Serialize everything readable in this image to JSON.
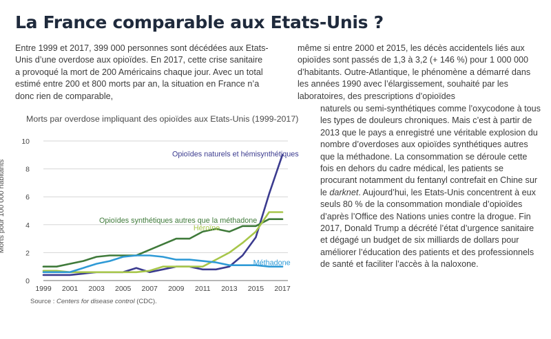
{
  "headline": "La France comparable aux Etats-Unis ?",
  "article": {
    "left_column": "Entre 1999 et 2017, 399 000 personnes sont décédées aux Etats-Unis d’une overdose aux opioïdes. En 2017, cette crise sanitaire a provoqué la mort de 200 Américains chaque jour. Avec un total estimé entre 200 et 800 morts par an, la situation en France n’a donc rien de comparable,",
    "right_column_top": "même si entre 2000 et 2015, les décès accidentels liés aux opioïdes sont passés de 1,3 à 3,2 (+ 146 %) pour 1 000 000 d’habitants. Outre-Atlantique, le phénomène a démarré dans les années 1990 avec l’élargissement, souhaité par les laboratoires, des prescriptions d’opioïdes",
    "right_column_1": "naturels ou semi-synthétiques comme l’oxycodone à tous les types de douleurs chroniques. Mais c’est à partir de 2013 que le pays a enregistré une véritable explosion du nombre d’overdoses aux opioïdes synthétiques autres que la méthadone. La consommation se déroule cette fois en dehors du cadre médical, les patients se procurant notamment du fentanyl contrefait en Chine sur le ",
    "right_column_italic": "darknet",
    "right_column_2": ". Aujourd’hui, les Etats-Unis concentrent à eux seuls 80 % de la consommation mondiale d’opioïdes d’après l’Office des Nations unies contre la drogue. Fin 2017, Donald Trump a décrété l’état d’urgence sanitaire et dégagé un budget de six milliards de dollars pour améliorer l’éducation des patients et des professionnels de santé et faciliter l’accès à la naloxone."
  },
  "chart_data": {
    "type": "line",
    "title": "Morts par overdose impliquant des opioïdes aux Etats-Unis (1999-2017)",
    "xlabel": "",
    "ylabel": "Morts pour 100 000 habitants",
    "xlim": [
      1999,
      2017
    ],
    "ylim": [
      0,
      10
    ],
    "x_ticks": [
      1999,
      2001,
      2003,
      2005,
      2007,
      2009,
      2011,
      2013,
      2015,
      2017
    ],
    "y_ticks": [
      0,
      2,
      4,
      6,
      8,
      10
    ],
    "grid": "horizontal",
    "x": [
      1999,
      2000,
      2001,
      2002,
      2003,
      2004,
      2005,
      2006,
      2007,
      2008,
      2009,
      2010,
      2011,
      2012,
      2013,
      2014,
      2015,
      2016,
      2017
    ],
    "series": [
      {
        "name": "Opioïdes naturels et hémisynthétiques",
        "color": "#3b3b8f",
        "values": [
          0.4,
          0.4,
          0.4,
          0.5,
          0.6,
          0.6,
          0.6,
          0.9,
          0.6,
          0.8,
          1.0,
          1.0,
          0.8,
          0.8,
          1.0,
          1.8,
          3.1,
          6.2,
          9.0
        ]
      },
      {
        "name": "Opioïdes synthétiques autres que la méthadone",
        "color": "#3f7a3a",
        "values": [
          1.0,
          1.0,
          1.2,
          1.4,
          1.7,
          1.8,
          1.8,
          1.8,
          2.2,
          2.6,
          3.0,
          3.0,
          3.5,
          3.7,
          3.5,
          3.9,
          3.9,
          4.4,
          4.4
        ]
      },
      {
        "name": "Héroïne",
        "color": "#a7c64a",
        "values": [
          0.7,
          0.7,
          0.6,
          0.6,
          0.6,
          0.6,
          0.6,
          0.6,
          0.7,
          1.0,
          1.0,
          1.0,
          1.0,
          1.5,
          2.0,
          2.7,
          3.5,
          4.9,
          4.9
        ]
      },
      {
        "name": "Méthadone",
        "color": "#2f9ad6",
        "values": [
          0.6,
          0.6,
          0.6,
          0.9,
          1.2,
          1.4,
          1.7,
          1.8,
          1.8,
          1.7,
          1.5,
          1.5,
          1.4,
          1.3,
          1.1,
          1.1,
          1.1,
          1.0,
          1.0
        ]
      }
    ],
    "source_label": "Source : ",
    "source_text": "Centers for disease control",
    "source_suffix": " (CDC)."
  }
}
